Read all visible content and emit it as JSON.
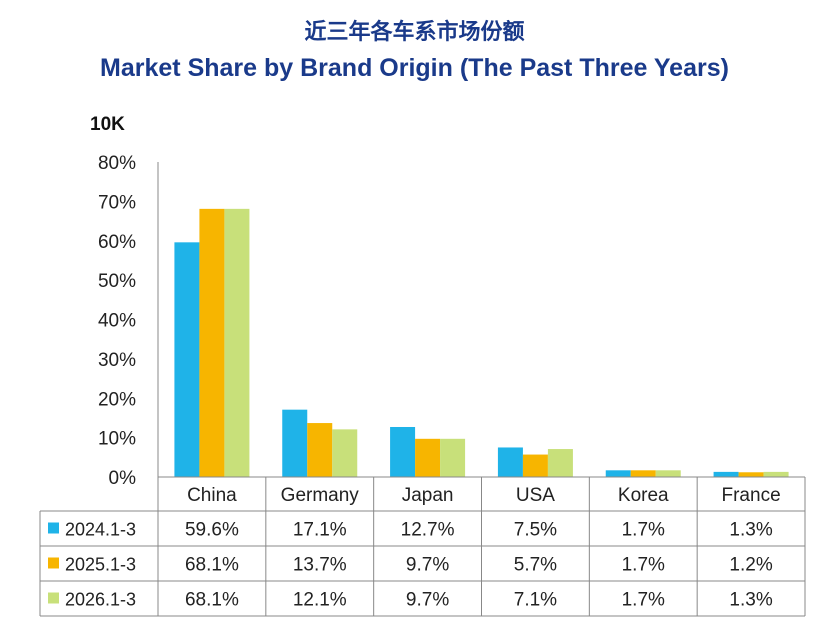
{
  "title_cn": "近三年各车系市场份额",
  "title_en": "Market Share by Brand Origin (The Past Three Years)",
  "unit_label": "10K",
  "chart_data": {
    "type": "bar",
    "title": "Market Share by Brand Origin (The Past Three Years)",
    "ylabel": "10K",
    "ylim": [
      0,
      80
    ],
    "yticks": [
      "0%",
      "10%",
      "20%",
      "30%",
      "40%",
      "50%",
      "60%",
      "70%",
      "80%"
    ],
    "categories": [
      "China",
      "Germany",
      "Japan",
      "USA",
      "Korea",
      "France"
    ],
    "series": [
      {
        "name": "2024.1-3",
        "color": "#1fb3e8",
        "values": [
          59.6,
          17.1,
          12.7,
          7.5,
          1.7,
          1.3
        ],
        "labels": [
          "59.6%",
          "17.1%",
          "12.7%",
          "7.5%",
          "1.7%",
          "1.3%"
        ]
      },
      {
        "name": "2025.1-3",
        "color": "#f7b500",
        "values": [
          68.1,
          13.7,
          9.7,
          5.7,
          1.7,
          1.2
        ],
        "labels": [
          "68.1%",
          "13.7%",
          "9.7%",
          "5.7%",
          "1.7%",
          "1.2%"
        ]
      },
      {
        "name": "2026.1-3",
        "color": "#c8e07a",
        "values": [
          68.1,
          12.1,
          9.7,
          7.1,
          1.7,
          1.3
        ],
        "labels": [
          "68.1%",
          "12.1%",
          "9.7%",
          "7.1%",
          "1.7%",
          "1.3%"
        ]
      }
    ],
    "legend": "data-table-left"
  }
}
